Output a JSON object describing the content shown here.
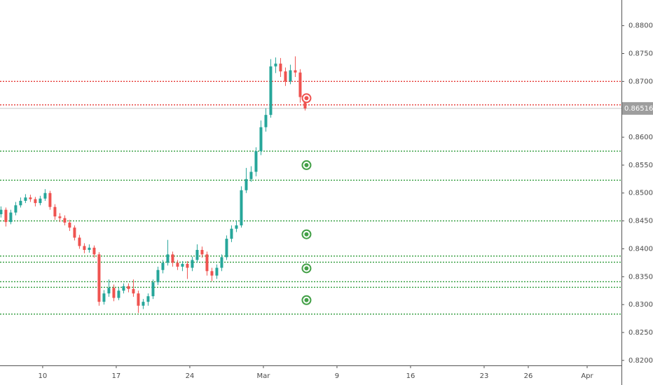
{
  "chart_data": {
    "type": "candlestick",
    "x": [
      -17,
      -15,
      -13,
      -11,
      -9,
      -7,
      -5,
      -3,
      -1,
      1,
      3,
      5,
      7,
      9,
      11,
      13,
      15,
      17,
      19,
      21,
      23,
      25,
      27,
      29,
      31,
      33,
      35,
      37,
      39,
      41,
      43,
      45,
      47,
      49,
      51,
      53,
      55,
      57,
      59,
      61,
      63,
      65,
      67,
      69,
      71,
      73,
      75,
      77,
      79,
      81,
      83,
      85,
      87,
      89,
      91,
      93,
      95,
      97,
      99,
      101,
      103,
      105,
      107
    ],
    "open": [
      0.8462,
      0.847,
      0.8448,
      0.8465,
      0.8478,
      0.8486,
      0.8492,
      0.8489,
      0.8482,
      0.849,
      0.85,
      0.8475,
      0.8458,
      0.8455,
      0.8447,
      0.8438,
      0.842,
      0.8405,
      0.8398,
      0.8402,
      0.839,
      0.8305,
      0.832,
      0.833,
      0.8312,
      0.8325,
      0.8333,
      0.8328,
      0.832,
      0.8298,
      0.8305,
      0.8315,
      0.834,
      0.8362,
      0.8375,
      0.839,
      0.8375,
      0.8368,
      0.8373,
      0.8366,
      0.838,
      0.8398,
      0.839,
      0.836,
      0.8352,
      0.8366,
      0.8385,
      0.8418,
      0.8436,
      0.8442,
      0.8505,
      0.8525,
      0.8538,
      0.8575,
      0.8618,
      0.864,
      0.8727,
      0.8732,
      0.8718,
      0.87,
      0.872,
      0.8716,
      0.8672
    ],
    "high": [
      0.8476,
      0.8474,
      0.847,
      0.8484,
      0.8492,
      0.8498,
      0.8497,
      0.8493,
      0.8495,
      0.8507,
      0.8504,
      0.848,
      0.8464,
      0.846,
      0.8452,
      0.8442,
      0.8425,
      0.841,
      0.8408,
      0.8406,
      0.8394,
      0.8326,
      0.8345,
      0.8336,
      0.833,
      0.8338,
      0.8338,
      0.8345,
      0.8325,
      0.831,
      0.832,
      0.8345,
      0.8368,
      0.838,
      0.8416,
      0.8395,
      0.838,
      0.8378,
      0.8378,
      0.8386,
      0.8408,
      0.8404,
      0.8395,
      0.8366,
      0.8372,
      0.839,
      0.8424,
      0.8442,
      0.845,
      0.8512,
      0.8545,
      0.8548,
      0.8582,
      0.863,
      0.8652,
      0.874,
      0.8743,
      0.8742,
      0.8725,
      0.873,
      0.8745,
      0.8722,
      0.8678
    ],
    "low": [
      0.8456,
      0.844,
      0.8444,
      0.846,
      0.8474,
      0.8482,
      0.8484,
      0.8476,
      0.8478,
      0.8486,
      0.847,
      0.8452,
      0.8448,
      0.8442,
      0.8432,
      0.8415,
      0.84,
      0.8392,
      0.8393,
      0.8384,
      0.8298,
      0.83,
      0.8314,
      0.8306,
      0.8308,
      0.832,
      0.8322,
      0.8314,
      0.8285,
      0.8292,
      0.8298,
      0.831,
      0.8335,
      0.8356,
      0.837,
      0.8368,
      0.8362,
      0.836,
      0.8346,
      0.836,
      0.8375,
      0.8384,
      0.8352,
      0.8342,
      0.8346,
      0.836,
      0.838,
      0.8412,
      0.843,
      0.8438,
      0.85,
      0.852,
      0.853,
      0.8568,
      0.861,
      0.8635,
      0.8715,
      0.8708,
      0.8692,
      0.8695,
      0.8708,
      0.8662,
      0.8648
    ],
    "close": [
      0.847,
      0.8448,
      0.8465,
      0.8478,
      0.8486,
      0.8492,
      0.8489,
      0.8482,
      0.849,
      0.85,
      0.8475,
      0.8458,
      0.8455,
      0.8447,
      0.8438,
      0.842,
      0.8405,
      0.8398,
      0.8402,
      0.839,
      0.8305,
      0.832,
      0.833,
      0.8312,
      0.8325,
      0.8333,
      0.8328,
      0.832,
      0.8298,
      0.8305,
      0.8315,
      0.834,
      0.8362,
      0.8375,
      0.839,
      0.8375,
      0.8368,
      0.8373,
      0.8366,
      0.838,
      0.8398,
      0.839,
      0.836,
      0.8352,
      0.8366,
      0.8385,
      0.8418,
      0.8436,
      0.8442,
      0.8505,
      0.8525,
      0.8538,
      0.8575,
      0.8618,
      0.864,
      0.8727,
      0.8732,
      0.8718,
      0.87,
      0.872,
      0.8716,
      0.8672,
      0.86516
    ],
    "up_color": "#26a69a",
    "down_color": "#ef5350",
    "xlim": [
      -17.4,
      236
    ],
    "xticks": [
      {
        "value": 0,
        "label": "10"
      },
      {
        "value": 30,
        "label": "17"
      },
      {
        "value": 60,
        "label": "24"
      },
      {
        "value": 90,
        "label": "Mar"
      },
      {
        "value": 120,
        "label": "9"
      },
      {
        "value": 150,
        "label": "16"
      },
      {
        "value": 180,
        "label": "23"
      },
      {
        "value": 198,
        "label": "26"
      },
      {
        "value": 222,
        "label": "Apr"
      }
    ],
    "ylim": [
      0.8191,
      0.8846
    ],
    "yticks": [
      {
        "value": 0.82,
        "label": "0.82000"
      },
      {
        "value": 0.825,
        "label": "0.82500"
      },
      {
        "value": 0.83,
        "label": "0.83000"
      },
      {
        "value": 0.835,
        "label": "0.83500"
      },
      {
        "value": 0.84,
        "label": "0.84000"
      },
      {
        "value": 0.845,
        "label": "0.84500"
      },
      {
        "value": 0.85,
        "label": "0.85000"
      },
      {
        "value": 0.855,
        "label": "0.85500"
      },
      {
        "value": 0.86,
        "label": "0.86000"
      },
      {
        "value": 0.865,
        "label": "0.86500"
      },
      {
        "value": 0.87,
        "label": "0.87000"
      },
      {
        "value": 0.875,
        "label": "0.87500"
      },
      {
        "value": 0.88,
        "label": "0.88000"
      }
    ],
    "grid": false,
    "levels": [
      {
        "value": 0.87,
        "color": "#e53935"
      },
      {
        "value": 0.8658,
        "color": "#e53935"
      },
      {
        "value": 0.8575,
        "color": "#2e9b3a"
      },
      {
        "value": 0.8523,
        "color": "#2e9b3a"
      },
      {
        "value": 0.845,
        "color": "#2e9b3a"
      },
      {
        "value": 0.8387,
        "color": "#2e9b3a"
      },
      {
        "value": 0.8376,
        "color": "#2e9b3a"
      },
      {
        "value": 0.8341,
        "color": "#2e9b3a"
      },
      {
        "value": 0.8331,
        "color": "#2e9b3a"
      },
      {
        "value": 0.8283,
        "color": "#2e9b3a"
      }
    ],
    "markers": [
      {
        "value": 0.867,
        "color": "#ef5350"
      },
      {
        "value": 0.855,
        "color": "#43a047"
      },
      {
        "value": 0.8426,
        "color": "#43a047"
      },
      {
        "value": 0.8365,
        "color": "#43a047"
      },
      {
        "value": 0.8308,
        "color": "#43a047"
      }
    ],
    "last_price_color": "#9e9e9e"
  }
}
